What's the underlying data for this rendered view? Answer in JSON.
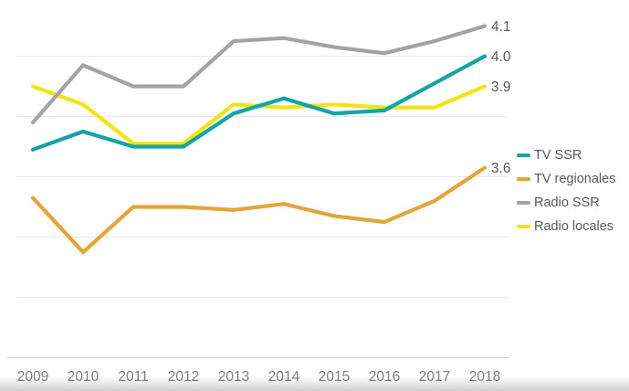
{
  "chart_data": {
    "type": "line",
    "title": "",
    "xlabel": "",
    "ylabel": "",
    "x_labels": [
      "2009",
      "2010",
      "2011",
      "2012",
      "2013",
      "2014",
      "2015",
      "2016",
      "2017",
      "2018"
    ],
    "series": [
      {
        "name": "TV SSR",
        "color": "#14a3a6",
        "values": [
          3.69,
          3.75,
          3.7,
          3.7,
          3.81,
          3.86,
          3.81,
          3.82,
          3.91,
          4.0
        ],
        "end_label": "4.0"
      },
      {
        "name": "TV regionales",
        "color": "#e2a43b",
        "values": [
          3.53,
          3.35,
          3.5,
          3.5,
          3.49,
          3.51,
          3.47,
          3.45,
          3.52,
          3.63
        ],
        "end_label": "3.6"
      },
      {
        "name": "Radio SSR",
        "color": "#a3a3a3",
        "values": [
          3.78,
          3.97,
          3.9,
          3.9,
          4.05,
          4.06,
          4.03,
          4.01,
          4.05,
          4.1
        ],
        "end_label": "4.1"
      },
      {
        "name": "Radio locales",
        "color": "#f1e414",
        "values": [
          3.9,
          3.84,
          3.71,
          3.71,
          3.84,
          3.83,
          3.84,
          3.83,
          3.83,
          3.9
        ],
        "end_label": "3.9"
      }
    ],
    "ylim": [
      3.0,
      4.2
    ],
    "gridline_values": [
      4.0,
      3.8,
      3.6,
      3.4,
      3.2
    ],
    "baseline_value": 3.0,
    "grid": "horizontal-only",
    "legend_position": "right"
  },
  "styles": {
    "background": "#ffffff",
    "grid_color": "#e9e9e9",
    "axis_color": "#d6d6d6",
    "tick_label_color": "#7f7f7f",
    "value_label_color": "#595959",
    "legend_text_color": "#595959"
  }
}
